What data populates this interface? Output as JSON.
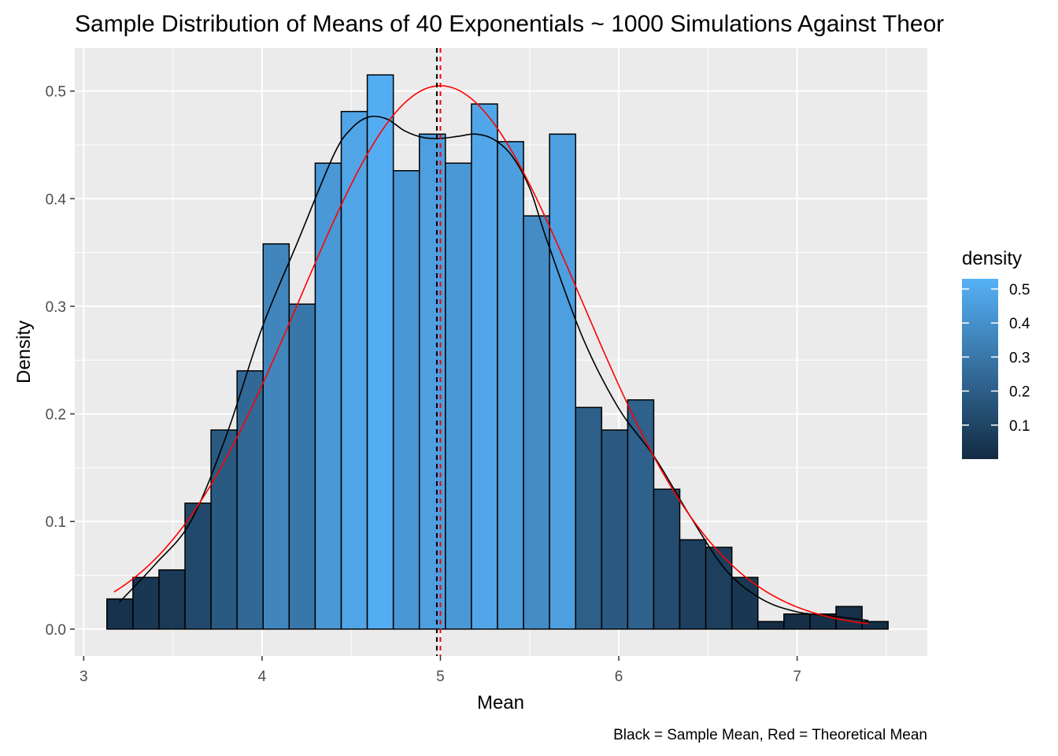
{
  "chart_data": {
    "type": "bar",
    "title": "Sample Distribution of Means of 40 Exponentials ~ 1000 Simulations Against Theor",
    "xlabel": "Mean",
    "ylabel": "Density",
    "caption": "Black = Sample Mean, Red = Theoretical Mean",
    "xlim": [
      2.95,
      7.73
    ],
    "ylim": [
      -0.025,
      0.54
    ],
    "x_ticks": [
      3,
      4,
      5,
      6,
      7
    ],
    "y_ticks": [
      0.0,
      0.1,
      0.2,
      0.3,
      0.4,
      0.5
    ],
    "x_tick_labels": [
      "3",
      "4",
      "5",
      "6",
      "7"
    ],
    "y_tick_labels": [
      "0.0",
      "0.1",
      "0.2",
      "0.3",
      "0.4",
      "0.5"
    ],
    "bins": {
      "start": 3.13,
      "width": 0.146,
      "values": [
        0.028,
        0.048,
        0.055,
        0.117,
        0.185,
        0.24,
        0.358,
        0.302,
        0.433,
        0.481,
        0.515,
        0.426,
        0.46,
        0.433,
        0.488,
        0.453,
        0.384,
        0.46,
        0.206,
        0.185,
        0.213,
        0.13,
        0.083,
        0.076,
        0.048,
        0.007,
        0.014,
        0.014,
        0.021,
        0.007
      ]
    },
    "sample_density_curve": {
      "x": [
        3.2,
        3.4,
        3.6,
        3.8,
        4.0,
        4.2,
        4.4,
        4.5,
        4.6,
        4.7,
        4.8,
        4.9,
        5.0,
        5.1,
        5.2,
        5.3,
        5.4,
        5.5,
        5.6,
        5.8,
        6.0,
        6.2,
        6.4,
        6.6,
        6.8,
        7.0,
        7.2,
        7.4
      ],
      "y": [
        0.025,
        0.06,
        0.1,
        0.18,
        0.28,
        0.36,
        0.44,
        0.465,
        0.476,
        0.474,
        0.463,
        0.457,
        0.456,
        0.458,
        0.46,
        0.455,
        0.44,
        0.41,
        0.36,
        0.27,
        0.205,
        0.16,
        0.105,
        0.055,
        0.028,
        0.016,
        0.012,
        0.008
      ]
    },
    "theoretical_density": {
      "mean": 5,
      "sd": 0.79,
      "x_range": [
        3.17,
        7.4
      ]
    },
    "sample_mean_line": 4.98,
    "theoretical_mean_line": 5.0,
    "colors": {
      "panel_bg": "#EBEBEB",
      "grid": "#FFFFFF",
      "bar_outline": "#000000",
      "sample_curve": "#000000",
      "theoretical_curve": "#FF0000",
      "sample_mean_line": "#000000",
      "theoretical_mean_line": "#FF0000",
      "gradient_low": "#132B43",
      "gradient_high": "#56B1F7"
    },
    "legend": {
      "title": "density",
      "placement": "right",
      "range": [
        0.0,
        0.53
      ],
      "breaks": [
        0.1,
        0.2,
        0.3,
        0.4,
        0.5
      ],
      "labels": [
        "0.1",
        "0.2",
        "0.3",
        "0.4",
        "0.5"
      ]
    }
  }
}
